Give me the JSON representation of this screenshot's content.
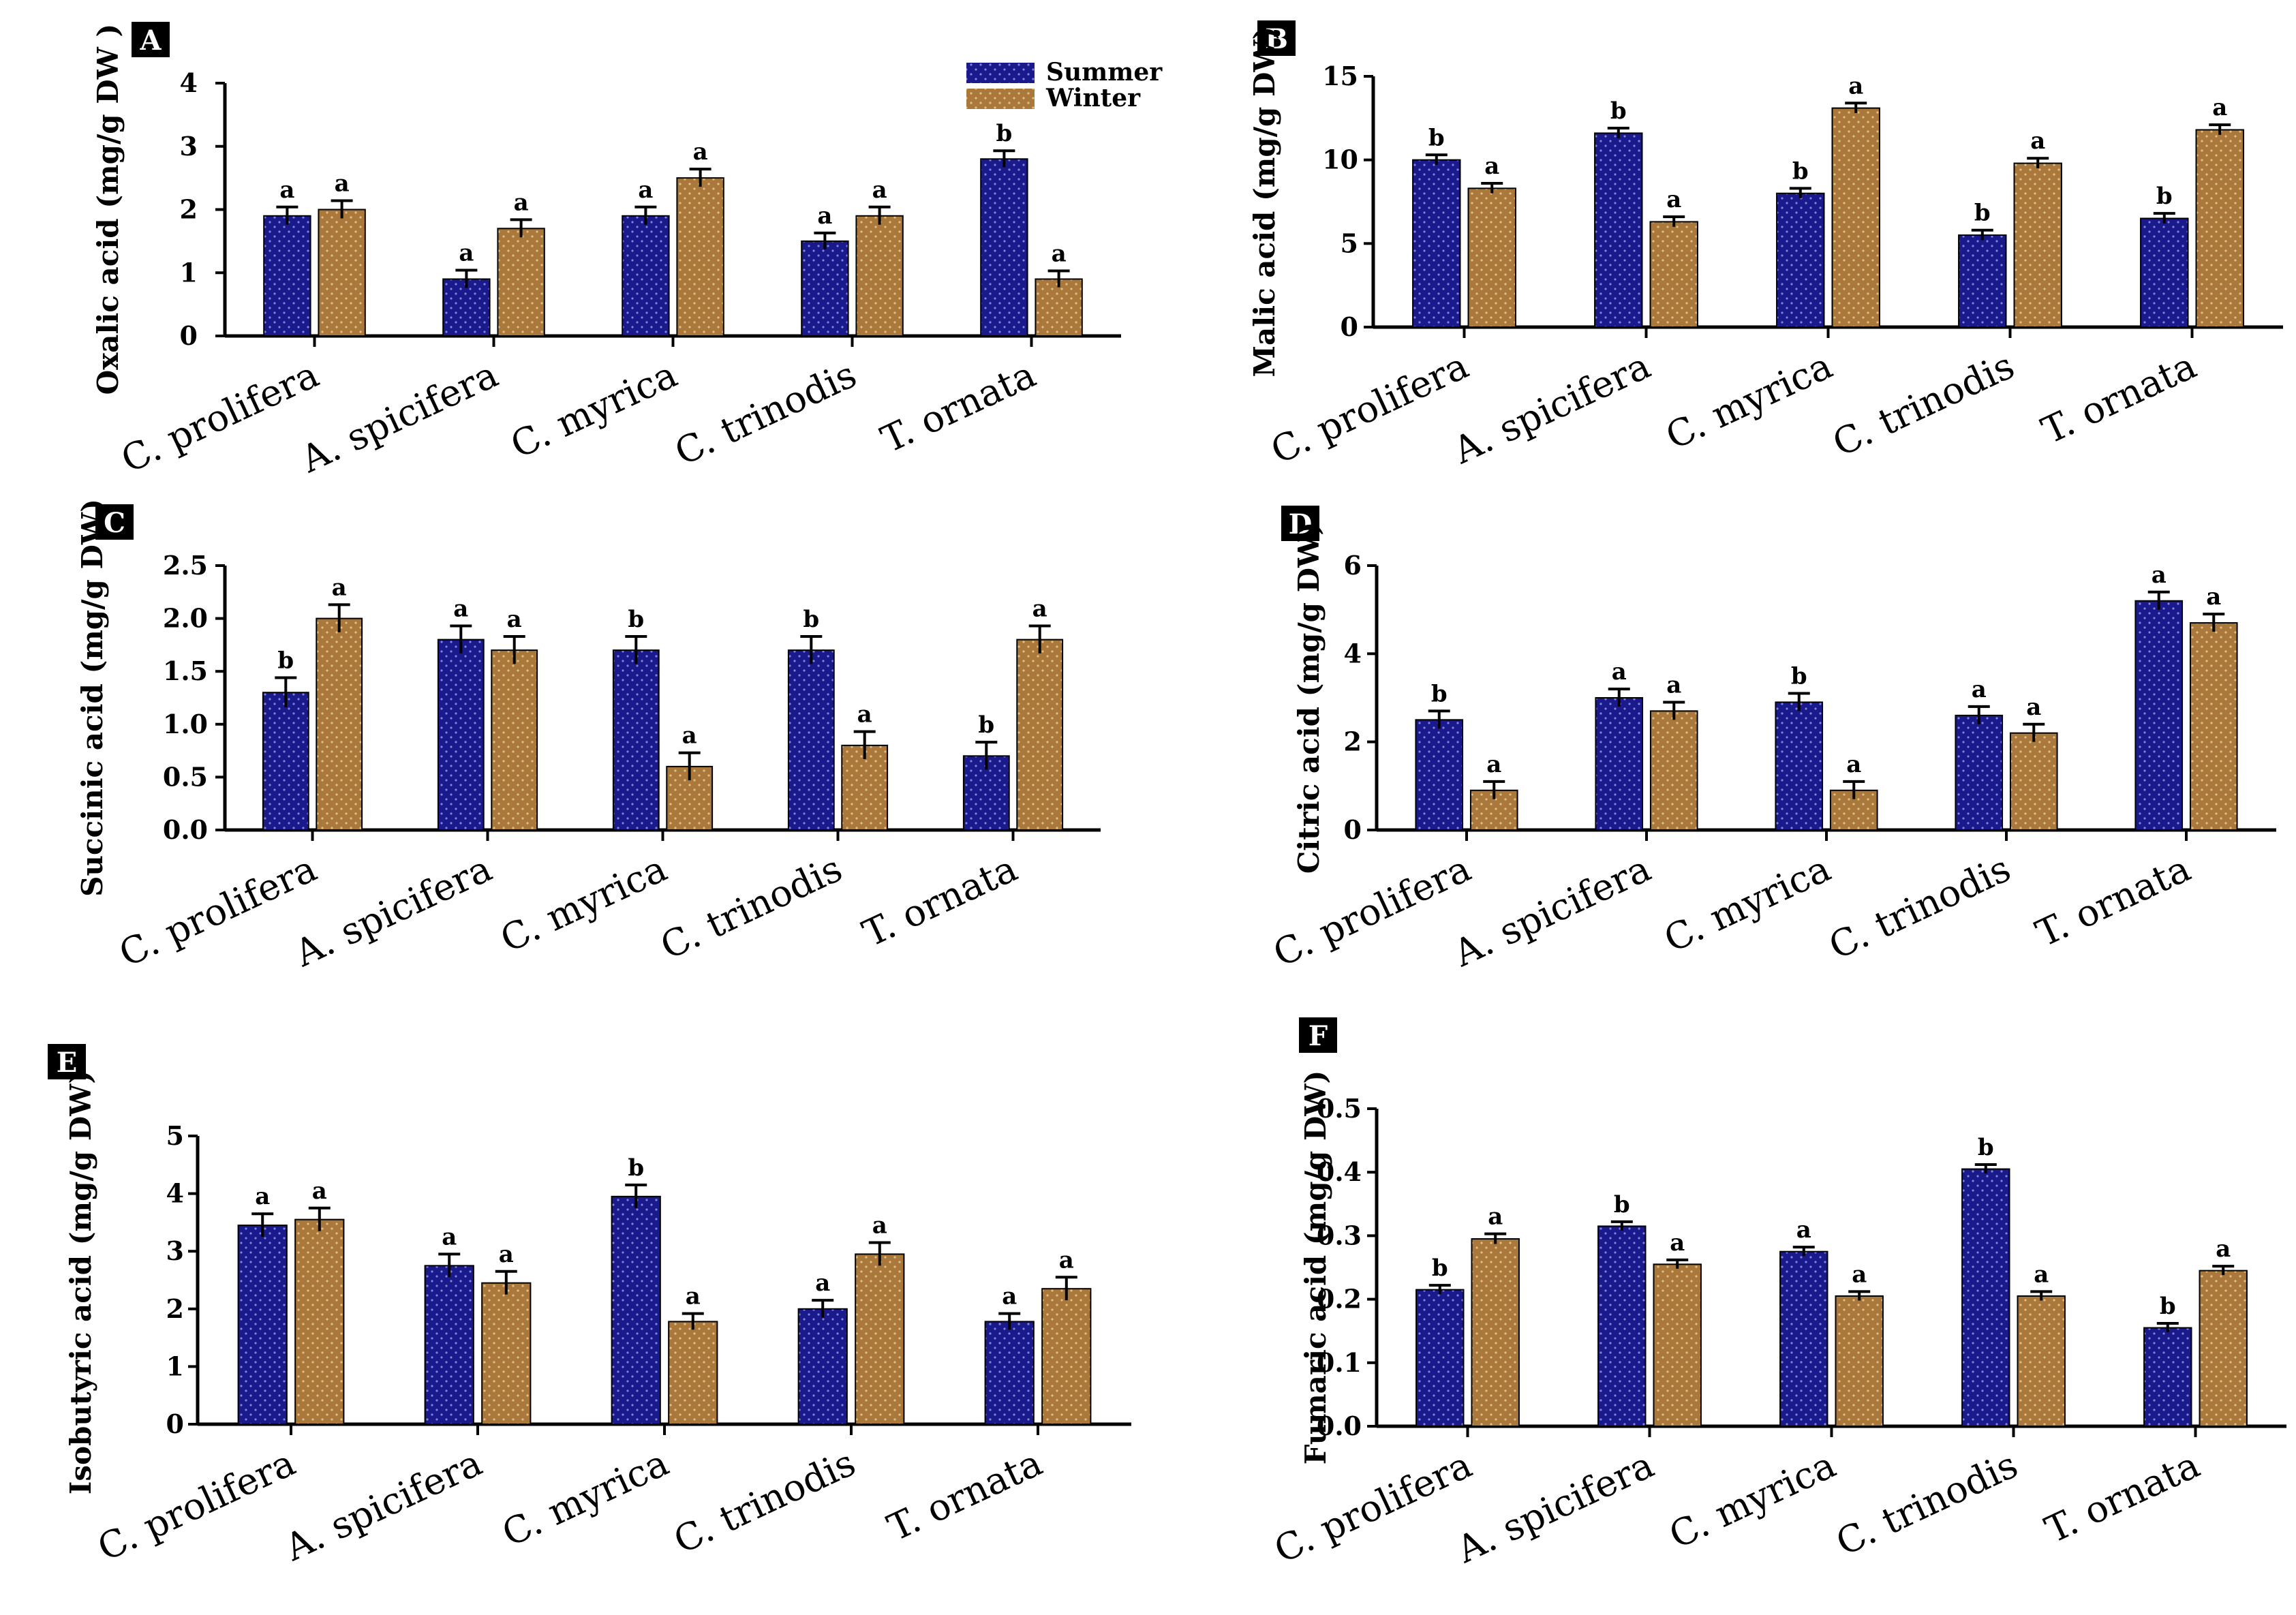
{
  "colors": {
    "summer": "#1a1a8c",
    "summer_dot": "#7b86d8",
    "winter": "#a9783a",
    "winter_dot": "#e0c08a"
  },
  "legend": {
    "items": [
      "Summer",
      "Winter"
    ],
    "placement": "top-right of panel A"
  },
  "chart_data": [
    {
      "panel": "A",
      "type": "bar",
      "ylabel": "Oxalic acid (mg/g DW )",
      "ylim": [
        0,
        4
      ],
      "yticks": [
        "0",
        "1",
        "2",
        "3",
        "4"
      ],
      "categories": [
        "C. prolifera",
        "A. spicifera",
        "C. myrica",
        "C. trinodis",
        "T. ornata"
      ],
      "series": [
        {
          "name": "Summer",
          "values": [
            1.9,
            0.9,
            1.9,
            1.5,
            2.8
          ],
          "errors": [
            0.14,
            0.14,
            0.14,
            0.13,
            0.13
          ],
          "sig": [
            "a",
            "a",
            "a",
            "a",
            "b"
          ]
        },
        {
          "name": "Winter",
          "values": [
            2.0,
            1.7,
            2.5,
            1.9,
            0.9
          ],
          "errors": [
            0.14,
            0.14,
            0.14,
            0.14,
            0.13
          ],
          "sig": [
            "a",
            "a",
            "a",
            "a",
            "a"
          ]
        }
      ]
    },
    {
      "panel": "B",
      "type": "bar",
      "ylabel": "Malic acid (mg/g DW)",
      "ylim": [
        0,
        15
      ],
      "yticks": [
        "0",
        "5",
        "10",
        "15"
      ],
      "categories": [
        "C. prolifera",
        "A. spicifera",
        "C. myrica",
        "C. trinodis",
        "T. ornata"
      ],
      "series": [
        {
          "name": "Summer",
          "values": [
            10.0,
            11.6,
            8.0,
            5.5,
            6.5
          ],
          "errors": [
            0.3,
            0.3,
            0.3,
            0.3,
            0.3
          ],
          "sig": [
            "b",
            "b",
            "b",
            "b",
            "b"
          ]
        },
        {
          "name": "Winter",
          "values": [
            8.3,
            6.3,
            13.1,
            9.8,
            11.8
          ],
          "errors": [
            0.3,
            0.3,
            0.3,
            0.3,
            0.3
          ],
          "sig": [
            "a",
            "a",
            "a",
            "a",
            "a"
          ]
        }
      ]
    },
    {
      "panel": "C",
      "type": "bar",
      "ylabel": "Succinic acid (mg/g DW)",
      "ylim": [
        0,
        2.5
      ],
      "yticks": [
        "0.0",
        "0.5",
        "1.0",
        "1.5",
        "2.0",
        "2.5"
      ],
      "categories": [
        "C. prolifera",
        "A. spicifera",
        "C. myrica",
        "C. trinodis",
        "T. ornata"
      ],
      "series": [
        {
          "name": "Summer",
          "values": [
            1.3,
            1.8,
            1.7,
            1.7,
            0.7
          ],
          "errors": [
            0.14,
            0.13,
            0.13,
            0.13,
            0.13
          ],
          "sig": [
            "b",
            "a",
            "b",
            "b",
            "b"
          ]
        },
        {
          "name": "Winter",
          "values": [
            2.0,
            1.7,
            0.6,
            0.8,
            1.8
          ],
          "errors": [
            0.13,
            0.13,
            0.13,
            0.13,
            0.13
          ],
          "sig": [
            "a",
            "a",
            "a",
            "a",
            "a"
          ]
        }
      ]
    },
    {
      "panel": "D",
      "type": "bar",
      "ylabel": "Citric acid (mg/g DW)",
      "ylim": [
        0,
        6
      ],
      "yticks": [
        "0",
        "2",
        "4",
        "6"
      ],
      "categories": [
        "C. prolifera",
        "A. spicifera",
        "C. myrica",
        "C. trinodis",
        "T. ornata"
      ],
      "series": [
        {
          "name": "Summer",
          "values": [
            2.5,
            3.0,
            2.9,
            2.6,
            5.2
          ],
          "errors": [
            0.2,
            0.2,
            0.2,
            0.2,
            0.2
          ],
          "sig": [
            "b",
            "a",
            "b",
            "a",
            "a"
          ]
        },
        {
          "name": "Winter",
          "values": [
            0.9,
            2.7,
            0.9,
            2.2,
            4.7
          ],
          "errors": [
            0.2,
            0.2,
            0.2,
            0.2,
            0.2
          ],
          "sig": [
            "a",
            "a",
            "a",
            "a",
            "a"
          ]
        }
      ]
    },
    {
      "panel": "E",
      "type": "bar",
      "ylabel": "Isobutyric acid (mg/g DW)",
      "ylim": [
        0,
        5
      ],
      "yticks": [
        "0",
        "1",
        "2",
        "3",
        "4",
        "5"
      ],
      "categories": [
        "C. prolifera",
        "A. spicifera",
        "C. myrica",
        "C. trinodis",
        "T. ornata"
      ],
      "series": [
        {
          "name": "Summer",
          "values": [
            3.45,
            2.75,
            3.95,
            2.0,
            1.78
          ],
          "errors": [
            0.2,
            0.2,
            0.2,
            0.15,
            0.14
          ],
          "sig": [
            "a",
            "a",
            "b",
            "a",
            "a"
          ]
        },
        {
          "name": "Winter",
          "values": [
            3.55,
            2.45,
            1.78,
            2.95,
            2.35
          ],
          "errors": [
            0.2,
            0.2,
            0.14,
            0.2,
            0.2
          ],
          "sig": [
            "a",
            "a",
            "a",
            "a",
            "a"
          ]
        }
      ]
    },
    {
      "panel": "F",
      "type": "bar",
      "ylabel": "Fumaric acid (mg/g DW)",
      "ylim": [
        0,
        0.5
      ],
      "yticks": [
        "0.0",
        "0.1",
        "0.2",
        "0.3",
        "0.4",
        "0.5"
      ],
      "categories": [
        "C. prolifera",
        "A. spicifera",
        "C. myrica",
        "C. trinodis",
        "T. ornata"
      ],
      "series": [
        {
          "name": "Summer",
          "values": [
            0.215,
            0.315,
            0.275,
            0.405,
            0.155
          ],
          "errors": [
            0.007,
            0.007,
            0.007,
            0.007,
            0.007
          ],
          "sig": [
            "b",
            "b",
            "a",
            "b",
            "b"
          ]
        },
        {
          "name": "Winter",
          "values": [
            0.295,
            0.255,
            0.205,
            0.205,
            0.245
          ],
          "errors": [
            0.008,
            0.007,
            0.007,
            0.007,
            0.007
          ],
          "sig": [
            "a",
            "a",
            "a",
            "a",
            "a"
          ]
        }
      ]
    }
  ]
}
